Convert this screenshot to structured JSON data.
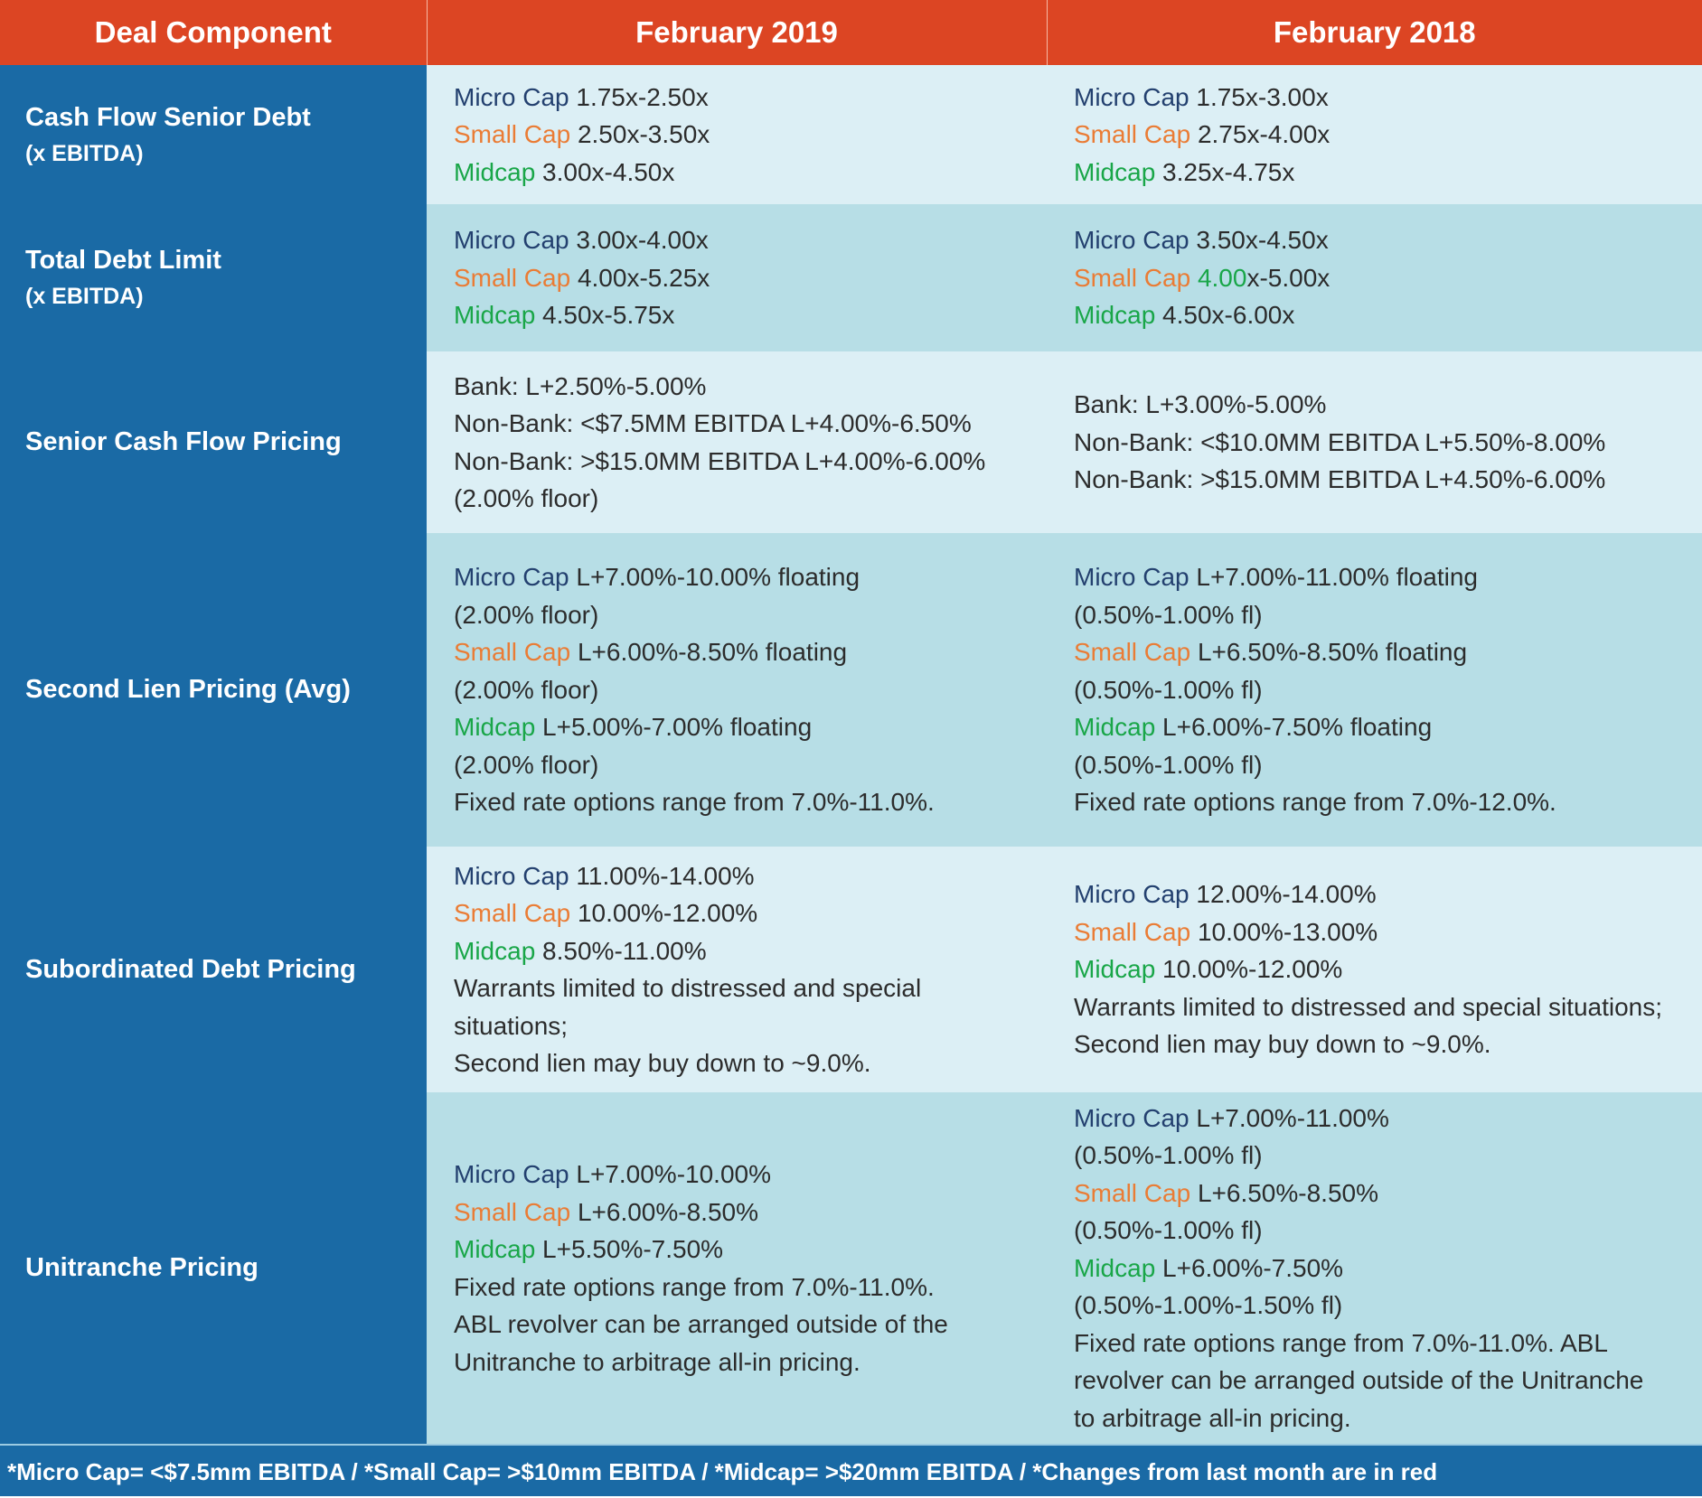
{
  "header": {
    "col1": "Deal Component",
    "col2": "February 2019",
    "col3": "February 2018"
  },
  "rows": [
    {
      "label": "Cash Flow Senior Debt",
      "sublabel": "(x EBITDA)",
      "feb2019": [
        {
          "cap": "Micro Cap",
          "value": " 1.75x-2.50x"
        },
        {
          "cap": "Small Cap",
          "value": " 2.50x-3.50x"
        },
        {
          "cap": "Midcap",
          "value": " 3.00x-4.50x"
        }
      ],
      "feb2018": [
        {
          "cap": "Micro Cap",
          "value": " 1.75x-3.00x"
        },
        {
          "cap": "Small Cap",
          "value": " 2.75x-4.00x"
        },
        {
          "cap": "Midcap",
          "value": " 3.25x-4.75x"
        }
      ]
    },
    {
      "label": "Total Debt Limit",
      "sublabel": "(x EBITDA)",
      "feb2019": [
        {
          "cap": "Micro Cap",
          "value": " 3.00x-4.00x"
        },
        {
          "cap": "Small Cap",
          "value": " 4.00x-5.25x"
        },
        {
          "cap": "Midcap",
          "value": " 4.50x-5.75x"
        }
      ],
      "feb2018": [
        {
          "cap": "Micro Cap",
          "value": " 3.50x-4.50x"
        },
        {
          "cap": "Small Cap",
          "value_highlight": " 4.00",
          "value": "x-5.00x"
        },
        {
          "cap": "Midcap",
          "value": " 4.50x-6.00x"
        }
      ]
    },
    {
      "label": "Senior Cash Flow Pricing",
      "feb2019": [
        "Bank: L+2.50%-5.00%",
        "Non-Bank: <$7.5MM EBITDA L+4.00%-6.50%",
        "Non-Bank: >$15.0MM EBITDA L+4.00%-6.00%",
        "(2.00% floor)"
      ],
      "feb2018": [
        "Bank: L+3.00%-5.00%",
        "Non-Bank: <$10.0MM EBITDA L+5.50%-8.00%",
        "Non-Bank: >$15.0MM EBITDA L+4.50%-6.00%"
      ]
    },
    {
      "label": "Second Lien Pricing (Avg)",
      "feb2019": {
        "micro": {
          "cap": "Micro Cap",
          "value": " L+7.00%-10.00% floating"
        },
        "micro_note": "(2.00% floor)",
        "small": {
          "cap": "Small Cap",
          "value": " L+6.00%-8.50% floating"
        },
        "small_note": "(2.00% floor)",
        "mid": {
          "cap": "Midcap",
          "value": " L+5.00%-7.00% floating"
        },
        "mid_note": "(2.00% floor)",
        "fixed": "Fixed rate options range from 7.0%-11.0%."
      },
      "feb2018": {
        "micro": {
          "cap": "Micro Cap",
          "value": " L+7.00%-11.00% floating"
        },
        "micro_note": "(0.50%-1.00% fl)",
        "small": {
          "cap": "Small Cap",
          "value": " L+6.50%-8.50% floating"
        },
        "small_note": "(0.50%-1.00% fl)",
        "mid": {
          "cap": "Midcap",
          "value": " L+6.00%-7.50% floating"
        },
        "mid_note": "(0.50%-1.00% fl)",
        "fixed": "Fixed rate options range from 7.0%-12.0%."
      }
    },
    {
      "label": "Subordinated Debt Pricing",
      "feb2019": {
        "micro": {
          "cap": "Micro Cap",
          "value": " 11.00%-14.00%"
        },
        "small": {
          "cap": "Small Cap",
          "value": " 10.00%-12.00%"
        },
        "mid": {
          "cap": "Midcap",
          "value": " 8.50%-11.00%"
        },
        "warrants_1": "Warrants limited to distressed and special",
        "warrants_2": "situations;",
        "second_lien": "Second lien may buy down to ~9.0%."
      },
      "feb2018": {
        "micro": {
          "cap": "Micro Cap",
          "value": " 12.00%-14.00%"
        },
        "small": {
          "cap": "Small Cap",
          "value": " 10.00%-13.00%"
        },
        "mid": {
          "cap": "Midcap",
          "value": " 10.00%-12.00%"
        },
        "warrants": "Warrants limited to distressed and special situations;",
        "second_lien": "Second lien may buy down to ~9.0%."
      }
    },
    {
      "label": "Unitranche Pricing",
      "feb2019": {
        "micro": {
          "cap": "Micro Cap",
          "value": " L+7.00%-10.00%"
        },
        "small": {
          "cap": "Small Cap",
          "value": " L+6.00%-8.50%"
        },
        "mid": {
          "cap": "Midcap",
          "value": " L+5.50%-7.50%"
        },
        "fixed": "Fixed rate options range from 7.0%-11.0%.",
        "abl_1": "ABL revolver can be arranged outside of the",
        "abl_2": "Unitranche to arbitrage all-in pricing."
      },
      "feb2018": {
        "micro": {
          "cap": "Micro Cap",
          "value": " L+7.00%-11.00%"
        },
        "micro_note": "(0.50%-1.00% fl)",
        "small": {
          "cap": "Small Cap",
          "value": " L+6.50%-8.50%"
        },
        "small_note": "(0.50%-1.00% fl)",
        "mid": {
          "cap": "Midcap",
          "value": " L+6.00%-7.50%"
        },
        "mid_note": "(0.50%-1.00%-1.50% fl)",
        "fixed_abl_1": "Fixed rate options range from 7.0%-11.0%. ABL",
        "fixed_abl_2": "revolver can be arranged outside of the Unitranche",
        "fixed_abl_3": "to arbitrage all-in pricing."
      }
    }
  ],
  "footer": "*Micro Cap= <$7.5mm EBITDA / *Small Cap= >$10mm EBITDA / *Midcap= >$20mm EBITDA / *Changes from last month are in red",
  "colors": {
    "header_bg": "#dc4523",
    "label_bg": "#1a6aa5",
    "row_light": "#dceff5",
    "row_mid": "#b7dee6",
    "micro_cap": "#23406f",
    "small_cap": "#ea7c35",
    "midcap": "#19a648"
  }
}
